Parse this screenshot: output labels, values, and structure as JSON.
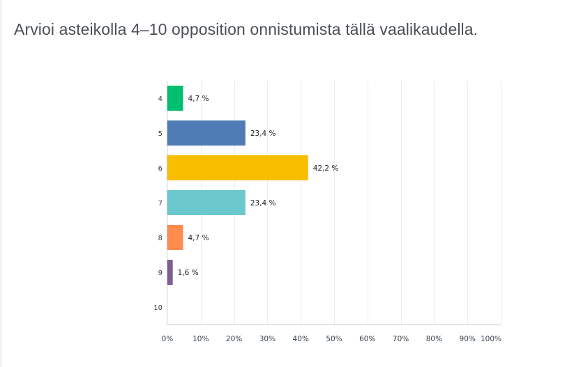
{
  "question": {
    "title": "Arvioi asteikolla 4–10 opposition onnistumista tällä vaalikaudella."
  },
  "chart_data": {
    "type": "bar",
    "orientation": "horizontal",
    "categories": [
      "4",
      "5",
      "6",
      "7",
      "8",
      "9",
      "10"
    ],
    "values": [
      4.7,
      23.4,
      42.2,
      23.4,
      4.7,
      1.6,
      0
    ],
    "value_labels": [
      "4,7 %",
      "23,4 %",
      "42,2 %",
      "23,4 %",
      "4,7 %",
      "1,6 %",
      ""
    ],
    "colors": [
      "#00bf6f",
      "#507cb6",
      "#f9be00",
      "#6bc8cd",
      "#ff8b4f",
      "#7d5e90",
      "#d25f90"
    ],
    "xlim": [
      0,
      100
    ],
    "xticks": [
      "0%",
      "10%",
      "20%",
      "30%",
      "40%",
      "50%",
      "60%",
      "70%",
      "80%",
      "90%",
      "100%"
    ],
    "grid": "vertical",
    "legend": "none"
  }
}
